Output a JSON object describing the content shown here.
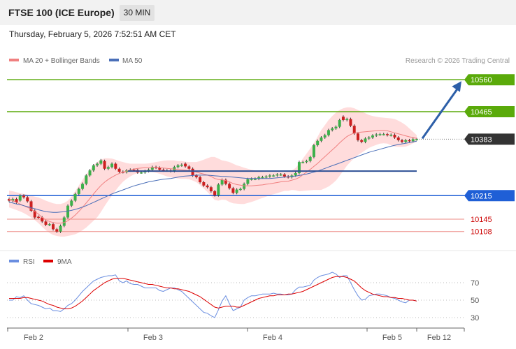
{
  "header": {
    "title": "FTSE 100 (ICE Europe)",
    "timeframe": "30 MIN",
    "datetime": "Thursday, February 5, 2026 7:52:51 AM CET"
  },
  "legend": {
    "ma20": "MA 20 + Bollinger Bands",
    "ma50": "MA 50",
    "credit": "Research © 2026 Trading Central"
  },
  "colors": {
    "up": "#3cb04a",
    "down": "#cc1f1f",
    "ma20": "#f08080",
    "ma50": "#4a6fb8",
    "band_fill": "#ffd6d6",
    "green_level": "#5aaa0a",
    "blue_level": "#1f5fd6",
    "red_level": "#ee8b85",
    "red_label": "#cc0000",
    "arrow": "#2d5fa8",
    "support_resistance": "#2d4f95",
    "rsi": "#6a8ee0",
    "rsi_ma": "#dd0000"
  },
  "chart_data": [
    {
      "type": "candlestick",
      "ylim": [
        10095,
        10575
      ],
      "x_tick_labels": [
        "Feb 2",
        "Feb 3",
        "Feb 4",
        "Feb 5",
        "Feb 12"
      ],
      "levels": [
        {
          "value": 10560,
          "label": "10560",
          "kind": "resistance"
        },
        {
          "value": 10465,
          "label": "10465",
          "kind": "resistance"
        },
        {
          "value": 10383,
          "label": "10383",
          "kind": "last"
        },
        {
          "value": 10215,
          "label": "10215",
          "kind": "support"
        },
        {
          "value": 10145,
          "label": "10145",
          "kind": "minor"
        },
        {
          "value": 10108,
          "label": "10108",
          "kind": "minor"
        }
      ],
      "horizontal_line_value": 10288,
      "forecast_arrow": {
        "from": 10383,
        "to": 10560
      },
      "series": [
        {
          "name": "MA 20 + Bollinger Bands",
          "kind": "price"
        },
        {
          "name": "MA 50",
          "kind": "moving_average"
        }
      ],
      "close": [
        10200,
        10205,
        10195,
        10215,
        10210,
        10198,
        10170,
        10150,
        10150,
        10138,
        10128,
        10130,
        10115,
        10108,
        10125,
        10150,
        10185,
        10200,
        10220,
        10235,
        10250,
        10275,
        10290,
        10305,
        10310,
        10320,
        10295,
        10300,
        10310,
        10295,
        10286,
        10285,
        10290,
        10292,
        10291,
        10284,
        10284,
        10288,
        10292,
        10300,
        10298,
        10292,
        10290,
        10290,
        10288,
        10300,
        10305,
        10307,
        10302,
        10295,
        10275,
        10270,
        10255,
        10245,
        10240,
        10228,
        10216,
        10248,
        10262,
        10250,
        10237,
        10223,
        10233,
        10235,
        10250,
        10264,
        10265,
        10265,
        10270,
        10270,
        10272,
        10275,
        10275,
        10278,
        10278,
        10272,
        10270,
        10275,
        10282,
        10315,
        10315,
        10318,
        10330,
        10365,
        10378,
        10388,
        10395,
        10410,
        10415,
        10420,
        10440,
        10440,
        10443,
        10423,
        10400,
        10380,
        10375,
        10385,
        10388,
        10394,
        10397,
        10398,
        10398,
        10395,
        10396,
        10388,
        10380,
        10375,
        10380,
        10377,
        10383,
        10383
      ],
      "open": [
        10205,
        10200,
        10205,
        10200,
        10215,
        10210,
        10198,
        10170,
        10152,
        10150,
        10138,
        10128,
        10130,
        10115,
        10108,
        10125,
        10150,
        10185,
        10200,
        10220,
        10235,
        10250,
        10275,
        10290,
        10305,
        10310,
        10318,
        10295,
        10300,
        10310,
        10295,
        10286,
        10285,
        10290,
        10292,
        10291,
        10284,
        10284,
        10288,
        10292,
        10300,
        10298,
        10292,
        10290,
        10290,
        10288,
        10300,
        10305,
        10310,
        10302,
        10295,
        10275,
        10270,
        10255,
        10245,
        10240,
        10228,
        10216,
        10248,
        10262,
        10250,
        10237,
        10223,
        10233,
        10235,
        10250,
        10264,
        10265,
        10265,
        10270,
        10270,
        10272,
        10275,
        10275,
        10278,
        10278,
        10272,
        10270,
        10275,
        10282,
        10315,
        10315,
        10318,
        10330,
        10365,
        10378,
        10388,
        10395,
        10410,
        10415,
        10420,
        10450,
        10440,
        10443,
        10423,
        10400,
        10380,
        10375,
        10385,
        10388,
        10394,
        10397,
        10398,
        10398,
        10395,
        10396,
        10388,
        10380,
        10375,
        10380,
        10377,
        10383
      ],
      "ma20": [
        10205,
        10200,
        10195,
        10190,
        10185,
        10180,
        10175,
        10168,
        10160,
        10150,
        10143,
        10138,
        10135,
        10133,
        10133,
        10135,
        10140,
        10148,
        10157,
        10168,
        10180,
        10193,
        10206,
        10220,
        10233,
        10245,
        10255,
        10263,
        10270,
        10276,
        10281,
        10285,
        10288,
        10291,
        10294,
        10296,
        10297,
        10298,
        10298,
        10299,
        10299,
        10298,
        10297,
        10296,
        10295,
        10294,
        10293,
        10292,
        10291,
        10290,
        10288,
        10285,
        10282,
        10279,
        10276,
        10272,
        10266,
        10263,
        10262,
        10260,
        10256,
        10251,
        10248,
        10246,
        10244,
        10244,
        10244,
        10245,
        10246,
        10247,
        10249,
        10250,
        10252,
        10254,
        10256,
        10257,
        10258,
        10261,
        10264,
        10269,
        10277,
        10285,
        10293,
        10302,
        10311,
        10321,
        10331,
        10341,
        10351,
        10361,
        10372,
        10382,
        10391,
        10397,
        10401,
        10403,
        10404,
        10405,
        10406,
        10407,
        10408,
        10409,
        10409,
        10408,
        10405,
        10402,
        10399,
        10396,
        10393,
        10390,
        10388,
        10385
      ],
      "ma50": [
        10195,
        10193,
        10190,
        10188,
        10185,
        10182,
        10179,
        10176,
        10173,
        10170,
        10167,
        10166,
        10165,
        10165,
        10166,
        10167,
        10169,
        10171,
        10174,
        10177,
        10181,
        10185,
        10190,
        10195,
        10200,
        10205,
        10210,
        10215,
        10220,
        10224,
        10228,
        10232,
        10236,
        10240,
        10244,
        10247,
        10250,
        10253,
        10256,
        10258,
        10260,
        10262,
        10264,
        10265,
        10266,
        10268,
        10270,
        10272,
        10273,
        10274,
        10275,
        10276,
        10276,
        10276,
        10276,
        10275,
        10274,
        10273,
        10272,
        10272,
        10271,
        10270,
        10269,
        10268,
        10267,
        10266,
        10266,
        10266,
        10266,
        10266,
        10266,
        10266,
        10267,
        10268,
        10269,
        10270,
        10271,
        10272,
        10273,
        10275,
        10277,
        10279,
        10282,
        10285,
        10288,
        10292,
        10296,
        10300,
        10304,
        10308,
        10312,
        10316,
        10320,
        10324,
        10328,
        10332,
        10336,
        10340,
        10344,
        10347,
        10350,
        10353,
        10356,
        10359,
        10362,
        10365,
        10367,
        10369,
        10371,
        10373,
        10375,
        10377
      ],
      "bb_upper": [
        10230,
        10228,
        10225,
        10222,
        10220,
        10218,
        10215,
        10212,
        10210,
        10205,
        10200,
        10196,
        10192,
        10190,
        10190,
        10193,
        10200,
        10212,
        10228,
        10245,
        10262,
        10278,
        10292,
        10305,
        10315,
        10322,
        10326,
        10326,
        10325,
        10322,
        10318,
        10315,
        10312,
        10310,
        10310,
        10310,
        10310,
        10310,
        10311,
        10313,
        10315,
        10317,
        10319,
        10320,
        10320,
        10320,
        10318,
        10318,
        10316,
        10315,
        10315,
        10315,
        10318,
        10322,
        10326,
        10330,
        10330,
        10325,
        10320,
        10318,
        10315,
        10310,
        10305,
        10302,
        10298,
        10295,
        10292,
        10290,
        10288,
        10286,
        10285,
        10285,
        10285,
        10285,
        10285,
        10285,
        10287,
        10290,
        10297,
        10310,
        10325,
        10340,
        10355,
        10372,
        10390,
        10410,
        10425,
        10440,
        10452,
        10462,
        10470,
        10475,
        10478,
        10478,
        10475,
        10470,
        10465,
        10460,
        10455,
        10452,
        10450,
        10448,
        10447,
        10446,
        10445,
        10443,
        10438,
        10432,
        10425,
        10415,
        10405,
        10395
      ],
      "bb_lower": [
        10180,
        10176,
        10172,
        10168,
        10163,
        10157,
        10150,
        10142,
        10133,
        10122,
        10112,
        10104,
        10098,
        10095,
        10093,
        10093,
        10095,
        10097,
        10100,
        10105,
        10112,
        10120,
        10130,
        10140,
        10151,
        10166,
        10184,
        10200,
        10215,
        10230,
        10244,
        10256,
        10265,
        10272,
        10278,
        10282,
        10284,
        10285,
        10285,
        10285,
        10283,
        10280,
        10276,
        10272,
        10270,
        10268,
        10266,
        10265,
        10265,
        10264,
        10260,
        10255,
        10246,
        10236,
        10226,
        10214,
        10202,
        10200,
        10203,
        10202,
        10196,
        10192,
        10191,
        10190,
        10190,
        10193,
        10196,
        10200,
        10204,
        10208,
        10212,
        10216,
        10219,
        10222,
        10226,
        10229,
        10229,
        10232,
        10231,
        10228,
        10229,
        10230,
        10231,
        10232,
        10232,
        10232,
        10237,
        10242,
        10250,
        10260,
        10274,
        10289,
        10304,
        10316,
        10327,
        10336,
        10343,
        10350,
        10357,
        10362,
        10366,
        10370,
        10371,
        10370,
        10365,
        10361,
        10360,
        10360,
        10361,
        10365,
        10371,
        10375
      ]
    },
    {
      "type": "line",
      "ylim": [
        20,
        85
      ],
      "y_tick_labels": [
        "70",
        "50",
        "30"
      ],
      "series": [
        {
          "name": "RSI",
          "values": [
            50,
            50,
            54,
            53,
            55,
            50,
            46,
            45,
            44,
            42,
            40,
            41,
            38,
            38,
            37,
            40,
            44,
            46,
            50,
            55,
            60,
            64,
            68,
            72,
            74,
            76,
            77,
            78,
            78,
            79,
            72,
            70,
            72,
            69,
            68,
            68,
            66,
            64,
            64,
            64,
            64,
            61,
            60,
            62,
            64,
            64,
            62,
            60,
            56,
            52,
            48,
            44,
            40,
            36,
            35,
            32,
            30,
            39,
            49,
            55,
            46,
            38,
            40,
            42,
            50,
            53,
            55,
            55,
            56,
            57,
            57,
            57,
            58,
            57,
            57,
            56,
            56,
            57,
            62,
            65,
            65,
            66,
            67,
            73,
            76,
            78,
            79,
            80,
            82,
            80,
            76,
            78,
            78,
            70,
            62,
            55,
            50,
            51,
            55,
            56,
            57,
            57,
            56,
            55,
            53,
            52,
            50,
            48,
            47,
            50,
            50,
            49
          ]
        },
        {
          "name": "9MA",
          "values": [
            52,
            52,
            52,
            52,
            53,
            53,
            52,
            51,
            50,
            49,
            47,
            45,
            44,
            42,
            41,
            40,
            40,
            41,
            43,
            46,
            49,
            53,
            57,
            61,
            64,
            67,
            70,
            72,
            74,
            75,
            75,
            75,
            74,
            73,
            72,
            71,
            70,
            69,
            68,
            68,
            67,
            66,
            65,
            64,
            64,
            63,
            63,
            62,
            61,
            60,
            58,
            56,
            54,
            51,
            48,
            45,
            42,
            41,
            42,
            43,
            43,
            43,
            42,
            42,
            44,
            46,
            48,
            50,
            52,
            53,
            54,
            55,
            55,
            56,
            56,
            56,
            57,
            57,
            58,
            59,
            60,
            62,
            64,
            66,
            68,
            70,
            72,
            74,
            76,
            77,
            77,
            77,
            76,
            74,
            72,
            68,
            64,
            61,
            59,
            57,
            56,
            55,
            54,
            54,
            53,
            53,
            52,
            52,
            51,
            50,
            50,
            49
          ]
        }
      ]
    }
  ]
}
